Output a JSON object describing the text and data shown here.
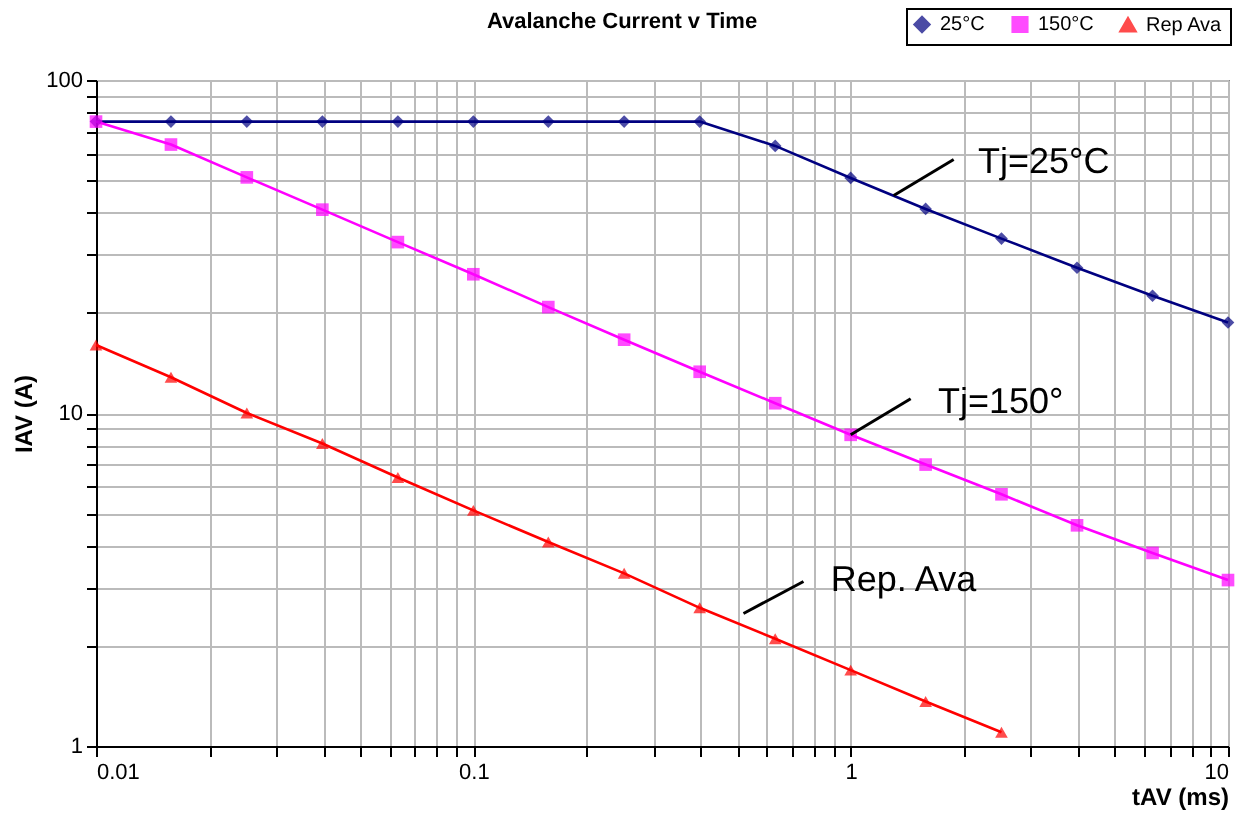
{
  "chart_data": {
    "type": "line",
    "title": "Avalanche Current v Time",
    "xlabel": "tAV (ms)",
    "ylabel": "IAV (A)",
    "x": [
      0.01,
      0.0158,
      0.0251,
      0.0398,
      0.0631,
      0.1,
      0.158,
      0.251,
      0.398,
      0.631,
      1,
      1.58,
      2.51,
      3.98,
      6.31,
      10
    ],
    "series": [
      {
        "name": "25°C",
        "color": "#000080",
        "marker": "diamond",
        "values": [
          75,
          75,
          75,
          75,
          75,
          75,
          75,
          75,
          75,
          63.4,
          50.8,
          41,
          33.4,
          27.3,
          22.5,
          18.7
        ]
      },
      {
        "name": "150°C",
        "color": "#ff00ff",
        "marker": "square",
        "values": [
          75,
          64,
          51,
          40.8,
          32.6,
          26.1,
          20.8,
          16.6,
          13.3,
          10.7,
          8.6,
          7.0,
          5.7,
          4.6,
          3.8,
          3.15
        ]
      },
      {
        "name": "Rep Ava",
        "color": "#ff0000",
        "marker": "triangle",
        "values": [
          16,
          12.8,
          10,
          8.1,
          6.4,
          5.1,
          4.1,
          3.3,
          2.6,
          2.1,
          1.69,
          1.36,
          1.1,
          null,
          null,
          null
        ]
      }
    ],
    "log": "xy",
    "xlim": [
      0.01,
      10
    ],
    "ylim": [
      1,
      100
    ],
    "xticks": [
      0.01,
      {
        "value": 0.02,
        "label": null
      },
      {
        "value": 0.03,
        "label": null
      },
      {
        "value": 0.04,
        "label": null
      },
      {
        "value": 0.05,
        "label": null
      },
      {
        "value": 0.06,
        "label": null
      },
      {
        "value": 0.07,
        "label": null
      },
      {
        "value": 0.08,
        "label": null
      },
      {
        "value": 0.09,
        "label": null
      },
      0.1,
      {
        "value": 0.2,
        "label": null
      },
      {
        "value": 0.3,
        "label": null
      },
      {
        "value": 0.4,
        "label": null
      },
      {
        "value": 0.5,
        "label": null
      },
      {
        "value": 0.6,
        "label": null
      },
      {
        "value": 0.7,
        "label": null
      },
      {
        "value": 0.8,
        "label": null
      },
      {
        "value": 0.9,
        "label": null
      },
      1,
      {
        "value": 2,
        "label": null
      },
      {
        "value": 3,
        "label": null
      },
      {
        "value": 4,
        "label": null
      },
      {
        "value": 5,
        "label": null
      },
      {
        "value": 6,
        "label": null
      },
      {
        "value": 7,
        "label": null
      },
      {
        "value": 8,
        "label": null
      },
      {
        "value": 9,
        "label": null
      },
      10
    ],
    "yticks": [
      1,
      {
        "value": 2,
        "label": null
      },
      {
        "value": 3,
        "label": null
      },
      {
        "value": 4,
        "label": null
      },
      {
        "value": 5,
        "label": null
      },
      {
        "value": 6,
        "label": null
      },
      {
        "value": 7,
        "label": null
      },
      {
        "value": 8,
        "label": null
      },
      {
        "value": 9,
        "label": null
      },
      10,
      {
        "value": 20,
        "label": null
      },
      {
        "value": 30,
        "label": null
      },
      {
        "value": 40,
        "label": null
      },
      {
        "value": 50,
        "label": null
      },
      {
        "value": 60,
        "label": null
      },
      {
        "value": 70,
        "label": null
      },
      {
        "value": 80,
        "label": null
      },
      {
        "value": 90,
        "label": null
      },
      100
    ],
    "grid": true,
    "legend": "top right",
    "line_style": "solid",
    "annotations": [
      {
        "text": "Tj=25°C",
        "x": 1.3,
        "y": 45
      },
      {
        "text": "Tj=150°",
        "x": 1,
        "y": 8.6
      },
      {
        "text": "Rep. Ava",
        "x": 0.52,
        "y": 2.5
      }
    ]
  }
}
